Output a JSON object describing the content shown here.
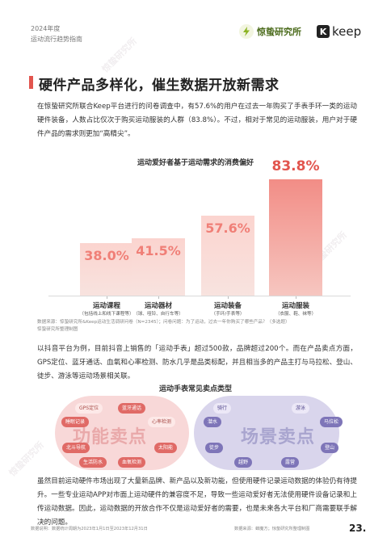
{
  "header": {
    "year": "2024年度",
    "subtitle": "运动流行趋势指南"
  },
  "logos": {
    "brand1": "惊蛰研究所",
    "brand2_mark": "K",
    "brand2_text": "keep"
  },
  "section": {
    "title": "硬件产品多样化，催生数据开放新需求",
    "paragraph1": "在惊蛰研究所联合Keep平台进行的问卷调查中，有57.6%的用户在过去一年购买了手表手环一类的运动硬件装备，人数占比仅次于购买运动服装的人群（83.8%）。不过，相对于常见的运动服装，用户对于硬件产品的需求则更加“高精尖”。"
  },
  "chart_data": {
    "type": "bar",
    "title": "运动爱好者基于运动需求的消费偏好",
    "categories": [
      "运动课程",
      "运动器材",
      "运动装备",
      "运动服装"
    ],
    "category_notes": [
      "（包括线上和线下课程等）",
      "（球、哑铃、自行车等）",
      "（手环/手表等）",
      "（衣服、鞋、袜等）"
    ],
    "values": [
      38.0,
      41.5,
      57.6,
      83.8
    ],
    "value_labels": [
      "38.0%",
      "41.5%",
      "57.6%",
      "83.8%"
    ],
    "ylim": [
      0,
      100
    ],
    "highlight_index": 3,
    "colors": {
      "bar": "#fbd4cf",
      "highlight": "#f28d86",
      "value": "#f07f77",
      "highlight_value": "#e2554e"
    }
  },
  "chart_source": "数据来源：惊蛰研究所&Keep运动生活调研问卷（N=2345）；问卷问题：为了运动，过去一年你购买了哪些产品？（多选题）",
  "chart_credit": "惊蛰研究所整理制图",
  "paragraph2": "以抖音平台为例，目前抖音上销售的「运动手表」超过500款，品牌超过200个。而在产品卖点方面，GPS定位、蓝牙通话、血氧和心率检测、防水几乎是品类标配，并且相当多的产品主打与马拉松、登山、徒步、游泳等运动场景相关联。",
  "features": {
    "title": "运动手表常见卖点类型",
    "left_label": "功能卖点",
    "right_label": "场景卖点",
    "left_items": [
      "GPS定位",
      "蓝牙通话",
      "睡眠记录",
      "心率检测",
      "北斗导航",
      "太阳能",
      "生活防水",
      "血氧检测"
    ],
    "right_items": [
      "骑行",
      "游泳",
      "潜水",
      "马拉松",
      "徒步",
      "登山",
      "越野",
      "露营"
    ]
  },
  "paragraph3": "虽然目前运动硬件市场出现了大量新品牌、新产品以及新功能，但使用硬件记录运动数据的体验仍有待提升。一些专业运动APP对市面上运动硬件的兼容度不足，导致一些运动爱好者无法使用硬件设备记录和上传运动数据。因此，运动数据的开放合作不仅是运动爱好者的需要，也是未来各大平台和厂商需要联手解决的问题。",
  "footer": {
    "left": "数据说明：数据统计周期为2023年1月1日至2023年12月31日",
    "right": "数据来源：蝉魔方；惊蛰研究所整理制图",
    "page": "23."
  },
  "watermark": "惊蛰研究所"
}
